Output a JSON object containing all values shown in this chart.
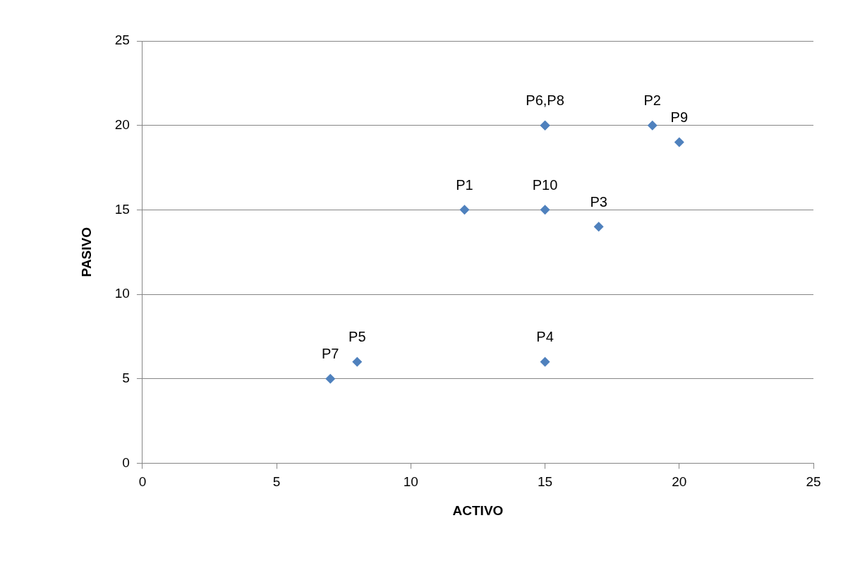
{
  "chart_data": {
    "type": "scatter",
    "xlabel": "ACTIVO",
    "ylabel": "PASIVO",
    "x": [
      12,
      19,
      17,
      15,
      8,
      15,
      7,
      15,
      20,
      15
    ],
    "series": [
      {
        "color": "#4f81bd",
        "values": [
          15,
          20,
          14,
          6,
          6,
          20,
          5,
          20,
          19,
          15
        ]
      }
    ],
    "xlim": [
      0,
      25
    ],
    "xticks": [
      0,
      5,
      10,
      15,
      20,
      25
    ],
    "ylim": [
      0,
      25
    ],
    "yticks": [
      0,
      5,
      10,
      15,
      20,
      25
    ],
    "grid": "y",
    "legend": false,
    "marker": "diamond",
    "annotations": [
      {
        "text": "P1",
        "x": 12,
        "y": 15
      },
      {
        "text": "P2",
        "x": 19,
        "y": 20
      },
      {
        "text": "P3",
        "x": 17,
        "y": 14
      },
      {
        "text": "P4",
        "x": 15,
        "y": 6
      },
      {
        "text": "P5",
        "x": 8,
        "y": 6
      },
      {
        "text": "P6,P8",
        "x": 15,
        "y": 20
      },
      {
        "text": "P7",
        "x": 7,
        "y": 5
      },
      {
        "text": "P9",
        "x": 20,
        "y": 19
      },
      {
        "text": "P10",
        "x": 15,
        "y": 15
      }
    ]
  }
}
